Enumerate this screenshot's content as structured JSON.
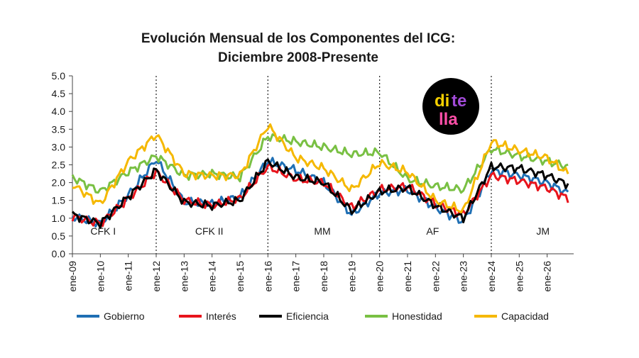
{
  "chart_data": {
    "type": "line",
    "title": "Evolución Mensual de los Componentes del ICG:",
    "subtitle": "Diciembre 2008-Presente",
    "xlabel": "",
    "ylabel": "",
    "ylim": [
      0,
      5
    ],
    "yticks": [
      "0.0",
      "0.5",
      "1.0",
      "1.5",
      "2.0",
      "2.5",
      "3.0",
      "3.5",
      "4.0",
      "4.5",
      "5.0"
    ],
    "x_tick_labels": [
      "ene-09",
      "ene-10",
      "ene-11",
      "ene-12",
      "ene-13",
      "ene-14",
      "ene-15",
      "ene-16",
      "ene-17",
      "ene-18",
      "ene-19",
      "ene-20",
      "ene-21",
      "ene-22",
      "ene-23",
      "ene-24",
      "ene-25",
      "ene-26"
    ],
    "x_anchor_years": [
      2009,
      2010,
      2011,
      2012,
      2013,
      2014,
      2015,
      2016,
      2017,
      2018,
      2019,
      2020,
      2021,
      2022,
      2023,
      2024,
      2025,
      2026,
      2026.75
    ],
    "period_dividers": [
      "ene-12",
      "ene-16",
      "ene-20",
      "ene-24"
    ],
    "period_labels": [
      "CFK I",
      "CFK II",
      "MM",
      "AF",
      "JM"
    ],
    "series": [
      {
        "name": "Gobierno",
        "color": "#1f6fb4",
        "values": [
          1.05,
          0.85,
          1.65,
          2.65,
          1.45,
          1.4,
          1.6,
          2.6,
          2.35,
          2.0,
          1.1,
          1.7,
          1.8,
          1.3,
          0.9,
          2.35,
          2.2,
          2.0,
          1.7
        ]
      },
      {
        "name": "Interés",
        "color": "#e8141c",
        "values": [
          1.05,
          0.85,
          1.55,
          2.3,
          1.5,
          1.35,
          1.55,
          2.45,
          2.1,
          2.0,
          1.3,
          1.8,
          1.9,
          1.4,
          1.1,
          2.2,
          2.05,
          1.85,
          1.55
        ]
      },
      {
        "name": "Eficiencia",
        "color": "#000000",
        "values": [
          1.1,
          0.85,
          1.6,
          2.35,
          1.45,
          1.35,
          1.5,
          2.6,
          2.15,
          2.0,
          1.2,
          1.75,
          1.85,
          1.35,
          1.0,
          2.45,
          2.4,
          2.2,
          1.95
        ]
      },
      {
        "name": "Honestidad",
        "color": "#79c043",
        "values": [
          2.15,
          1.75,
          2.3,
          2.75,
          2.2,
          2.25,
          2.15,
          3.3,
          3.15,
          3.0,
          2.8,
          2.85,
          2.1,
          1.9,
          1.8,
          2.95,
          2.75,
          2.6,
          2.45
        ]
      },
      {
        "name": "Capacidad",
        "color": "#f5b800",
        "values": [
          1.95,
          1.4,
          2.6,
          3.35,
          2.25,
          2.2,
          2.2,
          3.6,
          2.7,
          2.4,
          1.8,
          2.55,
          2.3,
          1.5,
          1.2,
          3.15,
          2.9,
          2.7,
          2.25
        ]
      }
    ],
    "legend": {
      "position": "bottom"
    },
    "grid": false
  },
  "logo": {
    "line1": "di",
    "line1b": "te",
    "line2": "lla"
  }
}
